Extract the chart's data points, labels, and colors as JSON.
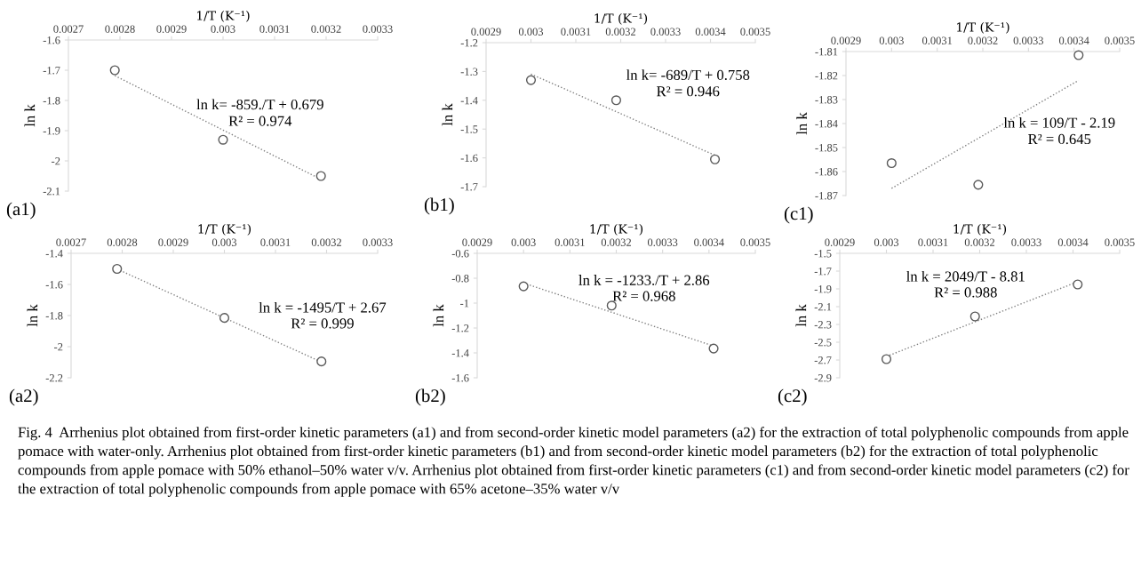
{
  "chart_data": [
    {
      "type": "scatter",
      "xlabel": "1/T (K⁻¹)",
      "ylabel": "ln k",
      "xlim": [
        0.0027,
        0.0033
      ],
      "xticks": [
        0.0027,
        0.0028,
        0.0029,
        0.003,
        0.0031,
        0.0032,
        0.0033
      ],
      "ylim": [
        -2.1,
        -1.6
      ],
      "yticks": [
        -1.6,
        -1.7,
        -1.8,
        -1.9,
        -2,
        -2.1
      ],
      "series": [
        {
          "marker": "circle",
          "color": "#595959",
          "x": [
            0.00279,
            0.003,
            0.00319
          ],
          "values": [
            -1.7,
            -1.93,
            -2.05
          ]
        },
        {
          "type": "line",
          "line_style": "dotted",
          "color": "#7f7f7f",
          "x": [
            0.00279,
            0.00319
          ],
          "values": [
            -1.718,
            -2.061
          ]
        }
      ],
      "annotations": [
        "ln k= -859./T + 0.679",
        "R² = 0.974",
        "(a1)"
      ]
    },
    {
      "type": "scatter",
      "xlabel": "1/T (K⁻¹)",
      "ylabel": "ln k",
      "xlim": [
        0.0029,
        0.0035
      ],
      "xticks": [
        0.0029,
        0.003,
        0.0031,
        0.0032,
        0.0033,
        0.0034,
        0.0035
      ],
      "ylim": [
        -1.7,
        -1.2
      ],
      "yticks": [
        -1.2,
        -1.3,
        -1.4,
        -1.5,
        -1.6,
        -1.7
      ],
      "series": [
        {
          "marker": "circle",
          "color": "#595959",
          "x": [
            0.003,
            0.00319,
            0.00341
          ],
          "values": [
            -1.33,
            -1.4,
            -1.605
          ]
        },
        {
          "type": "line",
          "line_style": "dotted",
          "color": "#7f7f7f",
          "x": [
            0.003,
            0.00341
          ],
          "values": [
            -1.309,
            -1.591
          ]
        }
      ],
      "annotations": [
        "ln k= -689/T + 0.758",
        "R² = 0.946",
        "(b1)"
      ]
    },
    {
      "type": "scatter",
      "xlabel": "1/T (K⁻¹)",
      "ylabel": "ln k",
      "xlim": [
        0.0029,
        0.0035
      ],
      "xticks": [
        0.0029,
        0.003,
        0.0031,
        0.0032,
        0.0033,
        0.0034,
        0.0035
      ],
      "ylim": [
        -1.87,
        -1.81
      ],
      "yticks": [
        -1.81,
        -1.82,
        -1.83,
        -1.84,
        -1.85,
        -1.86,
        -1.87
      ],
      "series": [
        {
          "marker": "circle",
          "color": "#595959",
          "x": [
            0.003,
            0.00319,
            0.00341
          ],
          "values": [
            -1.8565,
            -1.8655,
            -1.8115
          ]
        },
        {
          "type": "line",
          "line_style": "dotted",
          "color": "#7f7f7f",
          "x": [
            0.003,
            0.00341
          ],
          "values": [
            -1.867,
            -1.822
          ]
        }
      ],
      "annotations": [
        "ln k = 109/T - 2.19",
        "R² = 0.645",
        "(c1)"
      ]
    },
    {
      "type": "scatter",
      "xlabel": "1/T (K⁻¹)",
      "ylabel": "ln k",
      "xlim": [
        0.0027,
        0.0033
      ],
      "xticks": [
        0.0027,
        0.0028,
        0.0029,
        0.003,
        0.0031,
        0.0032,
        0.0033
      ],
      "ylim": [
        -2.2,
        -1.4
      ],
      "yticks": [
        -1.4,
        -1.6,
        -1.8,
        -2,
        -2.2
      ],
      "series": [
        {
          "marker": "circle",
          "color": "#595959",
          "x": [
            0.00279,
            0.003,
            0.00319
          ],
          "values": [
            -1.5,
            -1.815,
            -2.095
          ]
        },
        {
          "type": "line",
          "line_style": "dotted",
          "color": "#7f7f7f",
          "x": [
            0.00279,
            0.00319
          ],
          "values": [
            -1.501,
            -2.099
          ]
        }
      ],
      "annotations": [
        "ln k = -1495/T + 2.67",
        "R² = 0.999",
        "(a2)"
      ]
    },
    {
      "type": "scatter",
      "xlabel": "1/T (K⁻¹)",
      "ylabel": "ln k",
      "xlim": [
        0.0029,
        0.0035
      ],
      "xticks": [
        0.0029,
        0.003,
        0.0031,
        0.0032,
        0.0033,
        0.0034,
        0.0035
      ],
      "ylim": [
        -1.6,
        -0.6
      ],
      "yticks": [
        -0.6,
        -0.8,
        -1,
        -1.2,
        -1.4,
        -1.6
      ],
      "series": [
        {
          "marker": "circle",
          "color": "#595959",
          "x": [
            0.003,
            0.00319,
            0.00341
          ],
          "values": [
            -0.865,
            -1.02,
            -1.365
          ]
        },
        {
          "type": "line",
          "line_style": "dotted",
          "color": "#7f7f7f",
          "x": [
            0.003,
            0.00341
          ],
          "values": [
            -0.839,
            -1.345
          ]
        }
      ],
      "annotations": [
        "ln k = -1233./T + 2.86",
        "R² = 0.968",
        "(b2)"
      ]
    },
    {
      "type": "scatter",
      "xlabel": "1/T (K⁻¹)",
      "ylabel": "ln k",
      "xlim": [
        0.0029,
        0.0035
      ],
      "xticks": [
        0.0029,
        0.003,
        0.0031,
        0.0032,
        0.0033,
        0.0034,
        0.0035
      ],
      "ylim": [
        -2.9,
        -1.5
      ],
      "yticks": [
        -1.5,
        -1.7,
        -1.9,
        -2.1,
        -2.3,
        -2.5,
        -2.7,
        -2.9
      ],
      "series": [
        {
          "marker": "circle",
          "color": "#595959",
          "x": [
            0.003,
            0.00319,
            0.00341
          ],
          "values": [
            -2.69,
            -2.21,
            -1.85
          ]
        },
        {
          "type": "line",
          "line_style": "dotted",
          "color": "#7f7f7f",
          "x": [
            0.003,
            0.00341
          ],
          "values": [
            -2.66,
            -1.82
          ]
        }
      ],
      "annotations": [
        "ln k = 2049/T - 8.81",
        "R² = 0.988",
        "(c2)",
        "Fig. 4  Arrhenius plot obtained from first-order kinetic parameters (a1) and from second-order kinetic model parameters (a2) for the extraction of total polyphenolic compounds from apple pomace with water-only. Arrhenius plot obtained from first-order kinetic parameters (b1) and from second-order kinetic model parameters (b2) for the extraction of total polyphenolic compounds from apple pomace with 50% ethanol–50% water v/v. Arrhenius plot obtained from first-order kinetic parameters (c1) and from second-order kinetic model parameters (c2) for the extraction of total polyphenolic compounds from apple pomace with 65% acetone–35% water v/v"
      ]
    }
  ]
}
